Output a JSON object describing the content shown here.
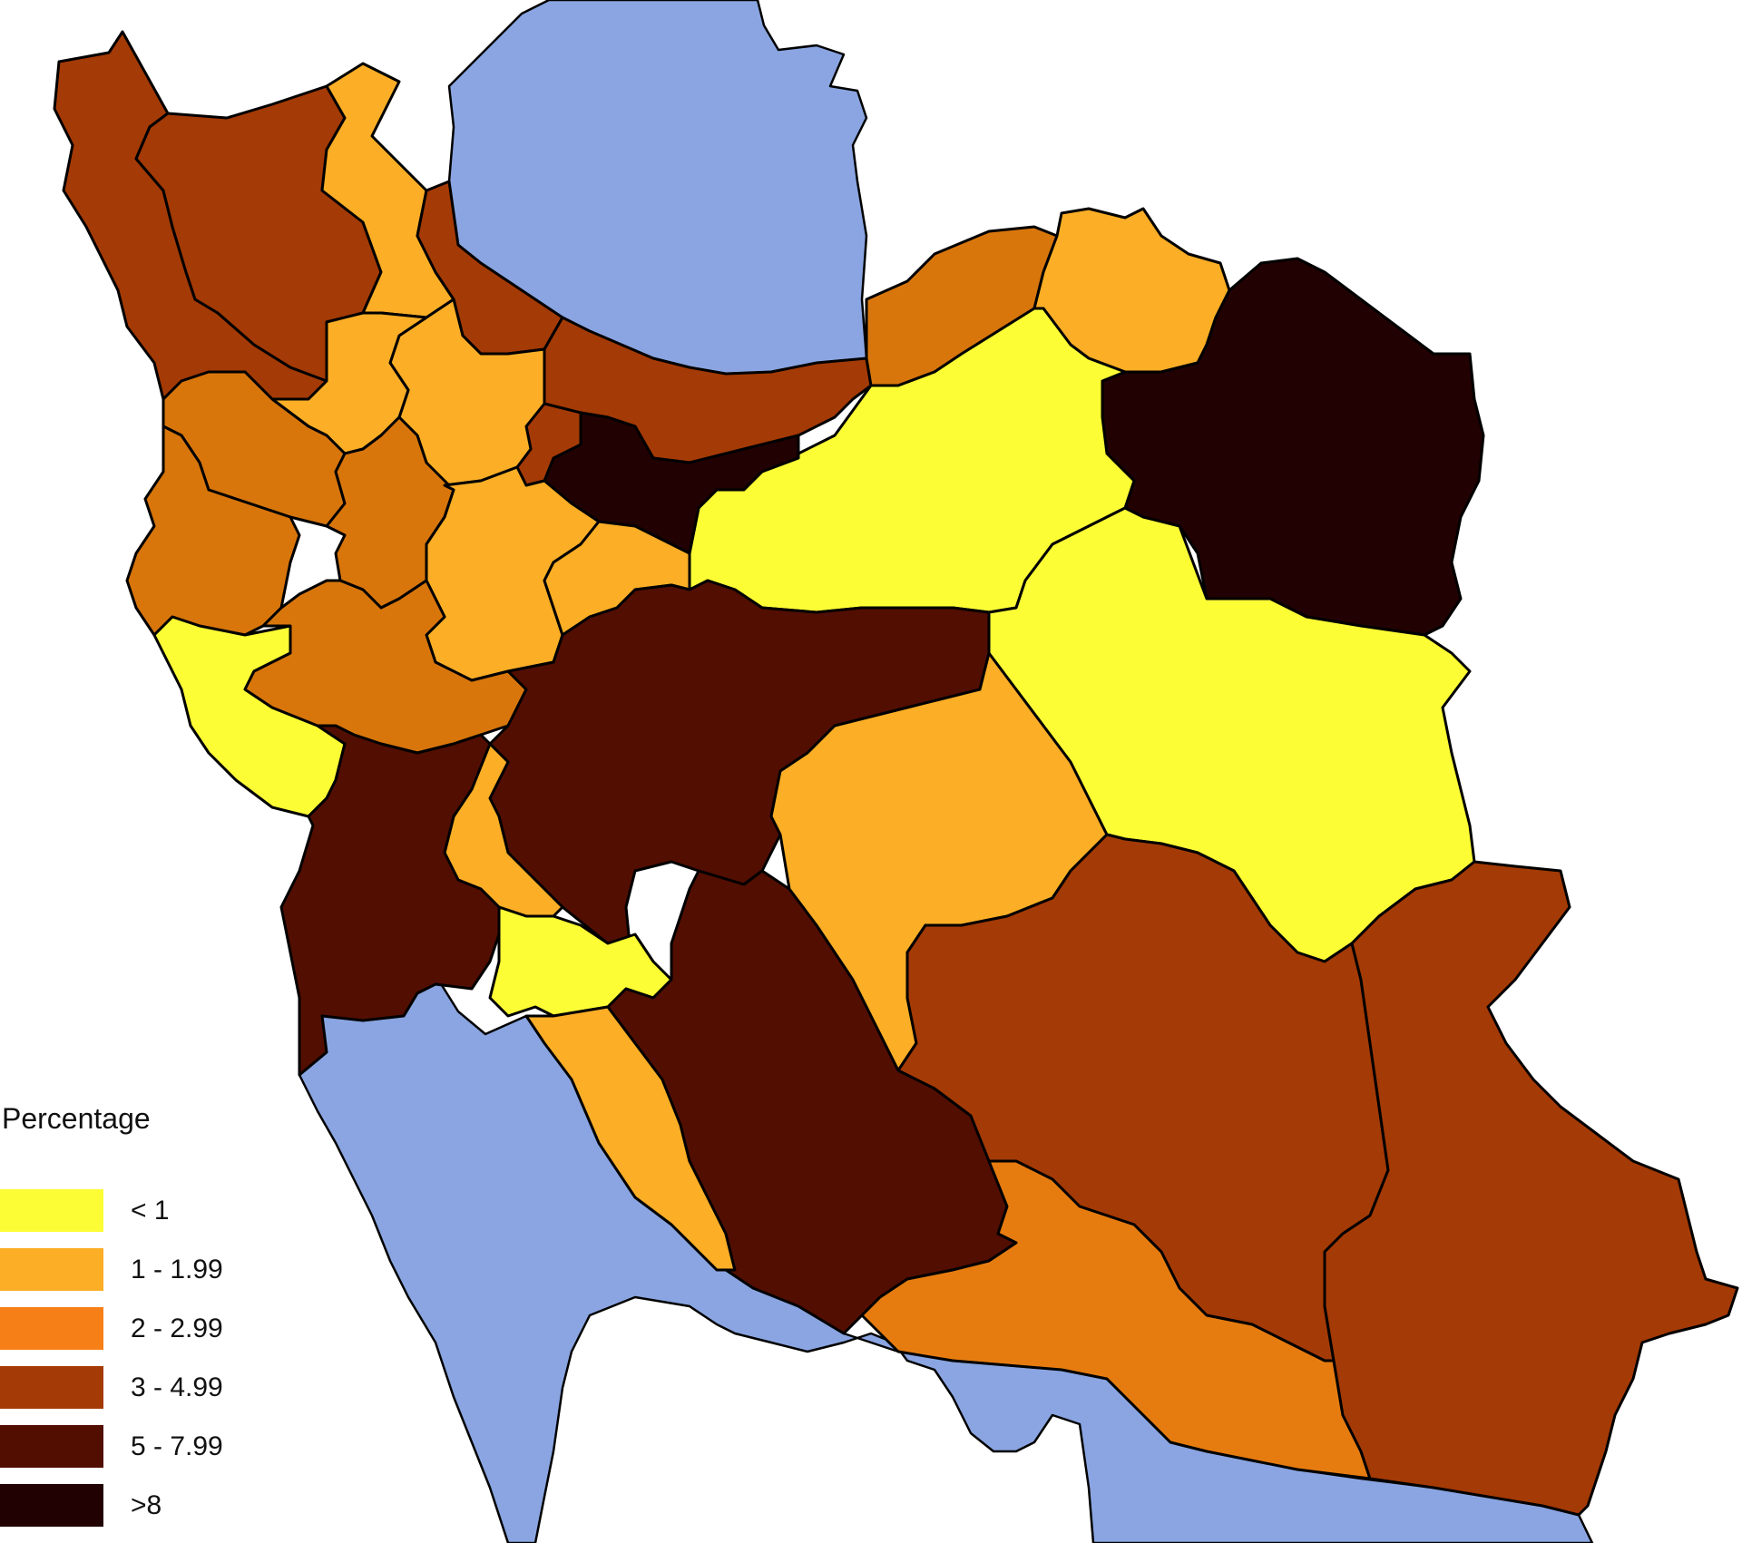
{
  "legend": {
    "title": "Percentage",
    "classes": [
      {
        "label": "< 1",
        "color": "#fdfd36"
      },
      {
        "label": "1 - 1.99",
        "color": "#fbae26"
      },
      {
        "label": "2 - 2.99",
        "color": "#f77f17"
      },
      {
        "label": "3 - 4.99",
        "color": "#a43a05"
      },
      {
        "label": "5 - 7.99",
        "color": "#520e01"
      },
      {
        "label": ">8",
        "color": "#210101"
      }
    ]
  },
  "colors": {
    "water": "#8aa5e1",
    "outline": "#000000",
    "background": "#ffffff"
  }
}
